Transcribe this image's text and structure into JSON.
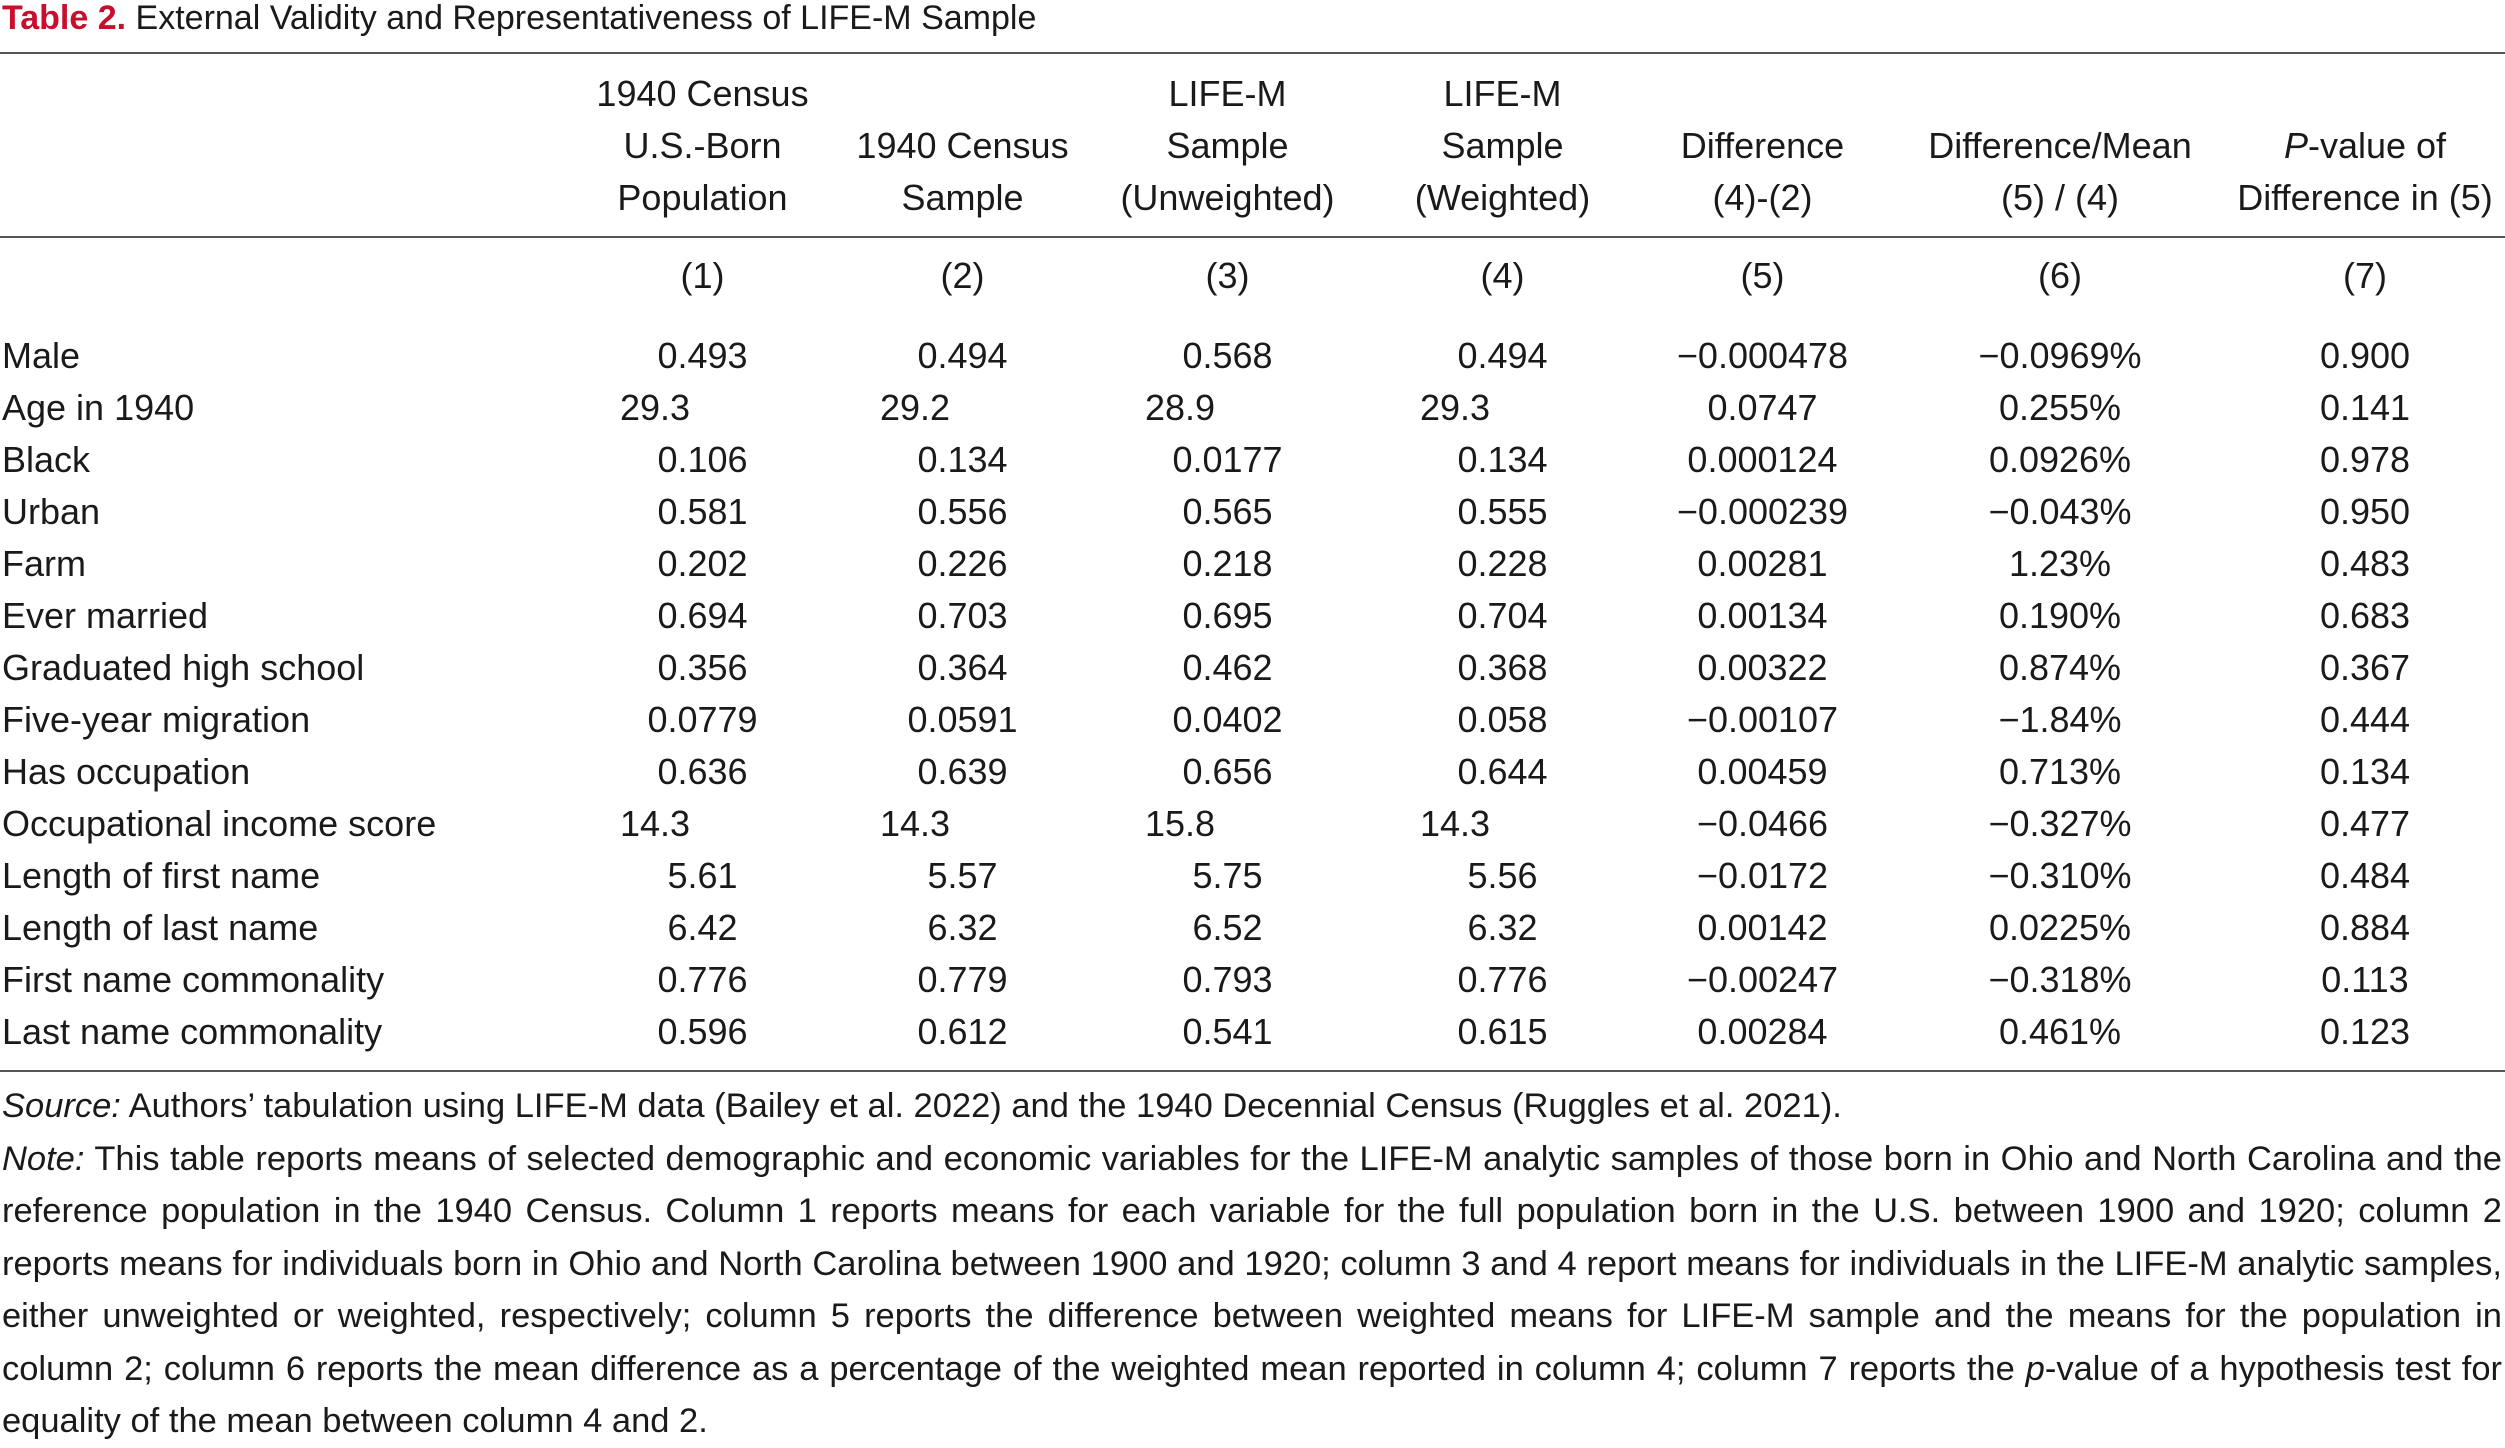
{
  "caption": {
    "label": "Table 2.",
    "title": "External Validity and Representativeness of LIFE-M Sample"
  },
  "headers": [
    [
      "1940 Census",
      "U.S.-Born",
      "Population"
    ],
    [
      "",
      "1940 Census",
      "Sample"
    ],
    [
      "LIFE-M",
      "Sample",
      "(Unweighted)"
    ],
    [
      "LIFE-M",
      "Sample",
      "(Weighted)"
    ],
    [
      "",
      "Difference",
      "(4)-(2)"
    ],
    [
      "",
      "Difference/Mean",
      "(5) / (4)"
    ],
    [
      "",
      "P-value of",
      "Difference in (5)"
    ]
  ],
  "header7_italic_letter": "P",
  "header7_rest": "-value of",
  "column_numbers": [
    "(1)",
    "(2)",
    "(3)",
    "(4)",
    "(5)",
    "(6)",
    "(7)"
  ],
  "rows": [
    {
      "label": "Male",
      "values": [
        "0.493",
        "0.494",
        "0.568",
        "0.494",
        "−0.000478",
        "−0.0969%",
        "0.900"
      ]
    },
    {
      "label": "Age in 1940",
      "values": [
        "29.3",
        "29.2",
        "28.9",
        "29.3",
        "0.0747",
        "0.255%",
        "0.141"
      ]
    },
    {
      "label": "Black",
      "values": [
        "0.106",
        "0.134",
        "0.0177",
        "0.134",
        "0.000124",
        "0.0926%",
        "0.978"
      ]
    },
    {
      "label": "Urban",
      "values": [
        "0.581",
        "0.556",
        "0.565",
        "0.555",
        "−0.000239",
        "−0.043%",
        "0.950"
      ]
    },
    {
      "label": "Farm",
      "values": [
        "0.202",
        "0.226",
        "0.218",
        "0.228",
        "0.00281",
        "1.23%",
        "0.483"
      ]
    },
    {
      "label": "Ever married",
      "values": [
        "0.694",
        "0.703",
        "0.695",
        "0.704",
        "0.00134",
        "0.190%",
        "0.683"
      ]
    },
    {
      "label": "Graduated high school",
      "values": [
        "0.356",
        "0.364",
        "0.462",
        "0.368",
        "0.00322",
        "0.874%",
        "0.367"
      ]
    },
    {
      "label": "Five-year migration",
      "values": [
        "0.0779",
        "0.0591",
        "0.0402",
        "0.058",
        "−0.00107",
        "−1.84%",
        "0.444"
      ]
    },
    {
      "label": "Has occupation",
      "values": [
        "0.636",
        "0.639",
        "0.656",
        "0.644",
        "0.00459",
        "0.713%",
        "0.134"
      ]
    },
    {
      "label": "Occupational income score",
      "values": [
        "14.3",
        "14.3",
        "15.8",
        "14.3",
        "−0.0466",
        "−0.327%",
        "0.477"
      ]
    },
    {
      "label": "Length of first name",
      "values": [
        "5.61",
        "5.57",
        "5.75",
        "5.56",
        "−0.0172",
        "−0.310%",
        "0.484"
      ]
    },
    {
      "label": "Length of last name",
      "values": [
        "6.42",
        "6.32",
        "6.52",
        "6.32",
        "0.00142",
        "0.0225%",
        "0.884"
      ]
    },
    {
      "label": "First name commonality",
      "values": [
        "0.776",
        "0.779",
        "0.793",
        "0.776",
        "−0.00247",
        "−0.318%",
        "0.113"
      ]
    },
    {
      "label": "Last name commonality",
      "values": [
        "0.596",
        "0.612",
        "0.541",
        "0.615",
        "0.00284",
        "0.461%",
        "0.123"
      ]
    }
  ],
  "notes": {
    "source_label": "Source:",
    "source_text": " Authors’ tabulation using LIFE-M data (Bailey et al. 2022) and the 1940 Decennial Census (Ruggles et al. 2021).",
    "note_label": "Note:",
    "note_text_1": " This table reports means of selected demographic and economic variables for the LIFE-M analytic samples of those born in Ohio and North Carolina and the reference population in the 1940 Census. Column 1 reports means for each variable for the full population born in the U.S. between 1900 and 1920; column 2 reports means for individuals born in Ohio and North Carolina between 1900 and 1920; column 3 and 4 report means for individuals in the LIFE-M analytic samples, either unweighted or weighted, respectively; column 5 reports the difference between weighted means for LIFE-M sample and the means for the population in column 2; column 6 reports the mean difference as a percentage of the weighted mean reported in column 4; column 7 reports the ",
    "note_italic": "p",
    "note_text_2": "-value of a hypothesis test for equality of the mean between column 4 and 2."
  }
}
